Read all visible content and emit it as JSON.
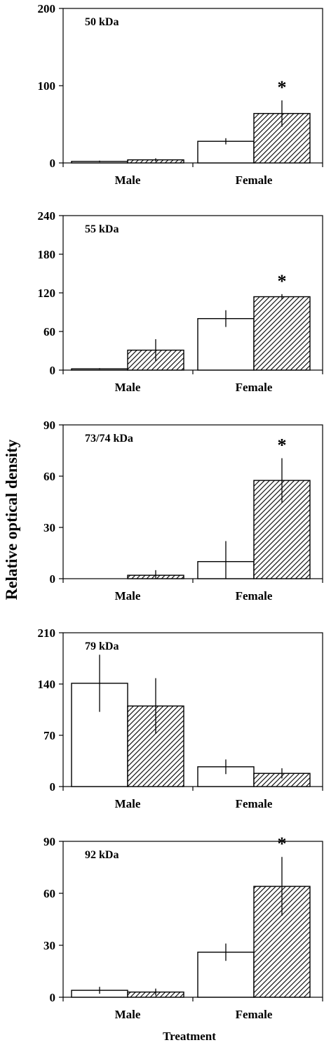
{
  "ylabel": "Relative optical density",
  "xlabel": "Treatment",
  "chart_data": [
    {
      "type": "bar",
      "title": "50 kDa",
      "categories": [
        "Male",
        "Female"
      ],
      "ylim": [
        0,
        200
      ],
      "yticks": [
        0,
        100,
        200
      ],
      "series": [
        {
          "fill": "open",
          "values": [
            2,
            28
          ],
          "errors": [
            1,
            4
          ]
        },
        {
          "fill": "hatched",
          "values": [
            4,
            64
          ],
          "errors": [
            2,
            17
          ]
        }
      ],
      "significance": [
        "",
        "*"
      ]
    },
    {
      "type": "bar",
      "title": "55 kDa",
      "categories": [
        "Male",
        "Female"
      ],
      "ylim": [
        0,
        240
      ],
      "yticks": [
        0,
        60,
        120,
        180,
        240
      ],
      "series": [
        {
          "fill": "open",
          "values": [
            2,
            80
          ],
          "errors": [
            1,
            13
          ]
        },
        {
          "fill": "hatched",
          "values": [
            31,
            114
          ],
          "errors": [
            17,
            4
          ]
        }
      ],
      "significance": [
        "",
        "*"
      ]
    },
    {
      "type": "bar",
      "title": "73/74 kDa",
      "categories": [
        "Male",
        "Female"
      ],
      "ylim": [
        0,
        90
      ],
      "yticks": [
        0,
        30,
        60,
        90
      ],
      "series": [
        {
          "fill": "open",
          "values": [
            0,
            10
          ],
          "errors": [
            0,
            12
          ]
        },
        {
          "fill": "hatched",
          "values": [
            2,
            57.5
          ],
          "errors": [
            3,
            13
          ]
        }
      ],
      "significance": [
        "",
        "*"
      ]
    },
    {
      "type": "bar",
      "title": "79 kDa",
      "categories": [
        "Male",
        "Female"
      ],
      "ylim": [
        0,
        210
      ],
      "yticks": [
        0,
        70,
        140,
        210
      ],
      "series": [
        {
          "fill": "open",
          "values": [
            141,
            27
          ],
          "errors": [
            39,
            10
          ]
        },
        {
          "fill": "hatched",
          "values": [
            110,
            18
          ],
          "errors": [
            38,
            7
          ]
        }
      ],
      "significance": [
        "",
        ""
      ]
    },
    {
      "type": "bar",
      "title": "92 kDa",
      "categories": [
        "Male",
        "Female"
      ],
      "ylim": [
        0,
        90
      ],
      "yticks": [
        0,
        30,
        60,
        90
      ],
      "series": [
        {
          "fill": "open",
          "values": [
            4,
            26
          ],
          "errors": [
            2,
            5
          ]
        },
        {
          "fill": "hatched",
          "values": [
            3,
            64
          ],
          "errors": [
            2,
            17
          ]
        }
      ],
      "significance": [
        "",
        "*"
      ]
    }
  ]
}
